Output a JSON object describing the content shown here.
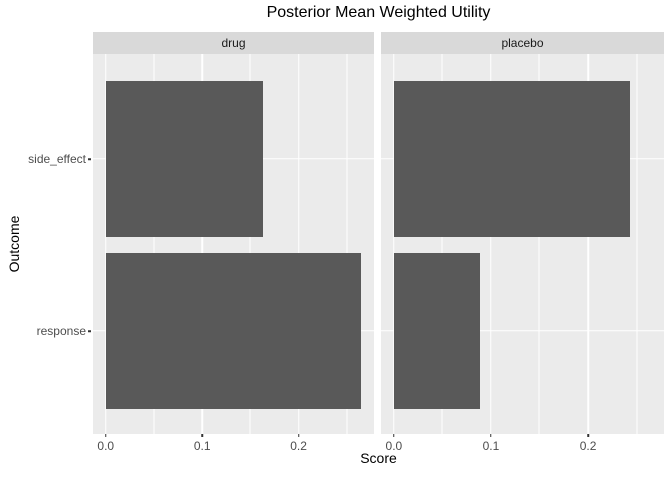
{
  "title": "Posterior Mean Weighted Utility",
  "chart_data": {
    "type": "bar",
    "orientation": "horizontal",
    "title": "Posterior Mean Weighted Utility",
    "xlabel": "Score",
    "ylabel": "Outcome",
    "categories": [
      "side_effect",
      "response"
    ],
    "facets": [
      {
        "label": "drug",
        "values": [
          0.163,
          0.265
        ]
      },
      {
        "label": "placebo",
        "values": [
          0.243,
          0.089
        ]
      }
    ],
    "x_ticks": [
      0.0,
      0.1,
      0.2
    ],
    "x_minor_ticks": [
      0.05,
      0.15,
      0.25
    ],
    "xlim": [
      -0.01325,
      0.27825
    ],
    "grid": true,
    "legend": "none",
    "bar_color": "#595959",
    "panel_bg": "#ebebeb",
    "strip_bg": "#d9d9d9",
    "grid_color": "#ffffff",
    "axis_text_color": "#4d4d4d"
  }
}
